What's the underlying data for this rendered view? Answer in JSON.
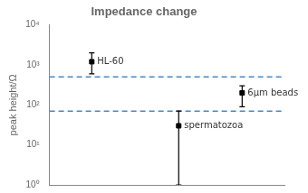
{
  "chart_data": {
    "type": "scatter",
    "title": "Impedance change",
    "y_label": "peak height/Ω",
    "log": "y",
    "grid": false,
    "tick_labels": "y",
    "xlim": [
      0,
      1
    ],
    "ylim": [
      1,
      10000
    ],
    "yticks": [
      {
        "value": 1,
        "label": "10⁰"
      },
      {
        "value": 10,
        "label": "10¹"
      },
      {
        "value": 100,
        "label": "10²"
      },
      {
        "value": 1000,
        "label": "10³"
      },
      {
        "value": 10000,
        "label": "10⁴"
      }
    ],
    "marker": "square",
    "color": "black",
    "x": [
      0.18,
      0.55,
      0.82
    ],
    "values": [
      1200,
      30,
      200
    ],
    "error_upper": [
      2000,
      70,
      300
    ],
    "error_lower": [
      600,
      1,
      90
    ],
    "point_labels": [
      "HL-60",
      "spermatozoa",
      "6μm beads"
    ],
    "reference_lines": [
      {
        "y": 500,
        "color": "#4488CC",
        "line_style": "dashed"
      },
      {
        "y": 70,
        "color": "#4488CC",
        "line_style": "dashed"
      }
    ]
  }
}
